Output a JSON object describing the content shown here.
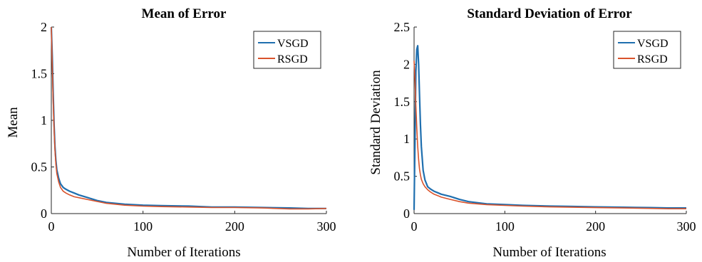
{
  "figure": {
    "background": "#ffffff",
    "series_colors": {
      "VSGD": "#1f6faf",
      "RSGD": "#d9532c"
    }
  },
  "chart_data": [
    {
      "type": "line",
      "title": "Mean of Error",
      "xlabel": "Number of Iterations",
      "ylabel": "Mean",
      "xlim": [
        0,
        300
      ],
      "ylim": [
        0,
        2
      ],
      "xticks": [
        0,
        100,
        200,
        300
      ],
      "yticks": [
        0,
        0.5,
        1,
        1.5,
        2
      ],
      "xtick_labels": [
        "0",
        "100",
        "200",
        "300"
      ],
      "ytick_labels": [
        "0",
        "0.5",
        "1",
        "1.5",
        "2"
      ],
      "grid": false,
      "legend": "top-right",
      "series": [
        {
          "name": "VSGD",
          "color": "#1f6faf",
          "x": [
            0,
            1,
            2,
            3,
            4,
            5,
            6,
            8,
            10,
            13,
            16,
            20,
            25,
            30,
            40,
            50,
            60,
            80,
            100,
            120,
            150,
            175,
            200,
            230,
            260,
            280,
            300
          ],
          "y": [
            2.0,
            1.7,
            1.3,
            0.95,
            0.72,
            0.57,
            0.47,
            0.38,
            0.32,
            0.28,
            0.26,
            0.24,
            0.22,
            0.2,
            0.17,
            0.14,
            0.12,
            0.1,
            0.09,
            0.085,
            0.08,
            0.07,
            0.07,
            0.065,
            0.06,
            0.055,
            0.055
          ]
        },
        {
          "name": "RSGD",
          "color": "#d9532c",
          "x": [
            0,
            1,
            2,
            3,
            4,
            5,
            6,
            8,
            10,
            13,
            16,
            20,
            25,
            30,
            40,
            50,
            60,
            80,
            100,
            120,
            150,
            175,
            200,
            230,
            260,
            280,
            300
          ],
          "y": [
            2.0,
            1.6,
            1.2,
            0.9,
            0.68,
            0.53,
            0.43,
            0.34,
            0.28,
            0.24,
            0.22,
            0.2,
            0.18,
            0.17,
            0.15,
            0.13,
            0.11,
            0.09,
            0.08,
            0.075,
            0.07,
            0.065,
            0.065,
            0.06,
            0.05,
            0.05,
            0.055
          ]
        }
      ]
    },
    {
      "type": "line",
      "title": "Standard Deviation of Error",
      "xlabel": "Number of Iterations",
      "ylabel": "Standard Deviation",
      "xlim": [
        0,
        300
      ],
      "ylim": [
        0,
        2.5
      ],
      "xticks": [
        0,
        100,
        200,
        300
      ],
      "yticks": [
        0,
        0.5,
        1,
        1.5,
        2,
        2.5
      ],
      "xtick_labels": [
        "0",
        "100",
        "200",
        "300"
      ],
      "ytick_labels": [
        "0",
        "0.5",
        "1",
        "1.5",
        "2",
        "2.5"
      ],
      "grid": false,
      "legend": "top-right",
      "series": [
        {
          "name": "VSGD",
          "color": "#1f6faf",
          "x": [
            0,
            1,
            2,
            3,
            4,
            5,
            6,
            7,
            8,
            10,
            12,
            15,
            18,
            22,
            26,
            30,
            40,
            50,
            60,
            80,
            100,
            120,
            150,
            175,
            200,
            230,
            260,
            280,
            300
          ],
          "y": [
            0.05,
            1.0,
            1.9,
            2.2,
            2.25,
            2.0,
            1.6,
            1.2,
            0.9,
            0.58,
            0.45,
            0.36,
            0.33,
            0.3,
            0.28,
            0.26,
            0.23,
            0.19,
            0.16,
            0.13,
            0.12,
            0.11,
            0.1,
            0.095,
            0.09,
            0.085,
            0.08,
            0.075,
            0.075
          ]
        },
        {
          "name": "RSGD",
          "color": "#d9532c",
          "x": [
            0,
            1,
            2,
            3,
            4,
            5,
            6,
            7,
            8,
            10,
            12,
            15,
            18,
            22,
            26,
            30,
            40,
            50,
            60,
            80,
            100,
            120,
            150,
            175,
            200,
            230,
            260,
            280,
            300
          ],
          "y": [
            2.05,
            1.8,
            1.45,
            1.15,
            0.9,
            0.72,
            0.6,
            0.52,
            0.46,
            0.4,
            0.36,
            0.32,
            0.29,
            0.26,
            0.24,
            0.22,
            0.19,
            0.16,
            0.14,
            0.12,
            0.11,
            0.1,
            0.09,
            0.085,
            0.08,
            0.075,
            0.07,
            0.065,
            0.065
          ]
        }
      ]
    }
  ]
}
